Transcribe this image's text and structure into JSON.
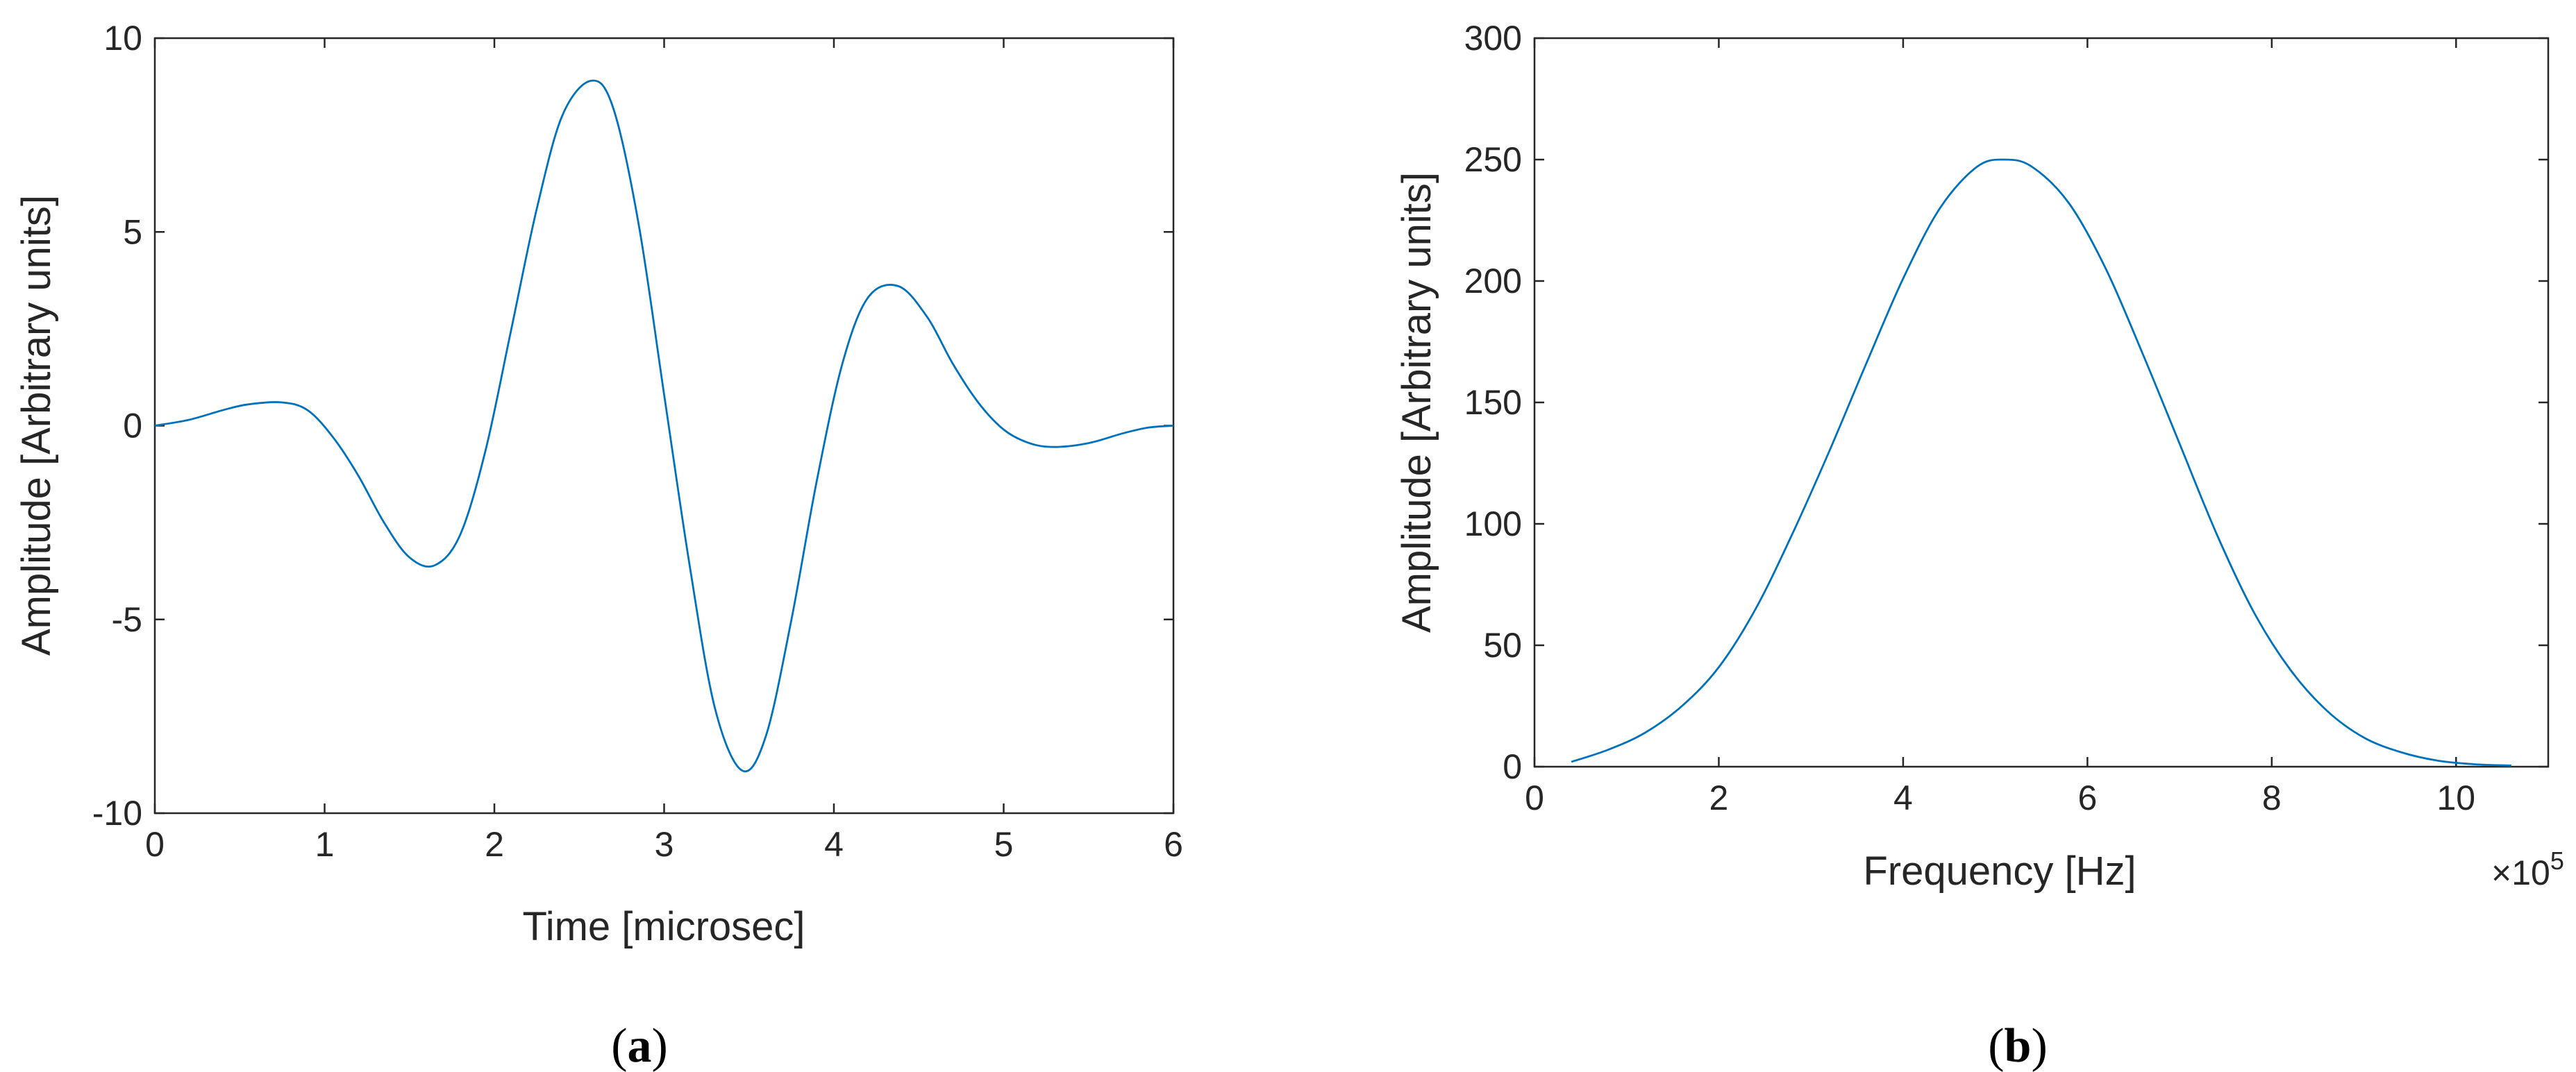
{
  "chart_data": [
    {
      "type": "line",
      "caption_letter": "a",
      "xlabel": "Time [microsec]",
      "ylabel": "Amplitude [Arbitrary units]",
      "xlim": [
        0,
        6
      ],
      "ylim": [
        -10,
        10
      ],
      "xticks": [
        0,
        1,
        2,
        3,
        4,
        5,
        6
      ],
      "yticks": [
        -10,
        -5,
        0,
        5,
        10
      ],
      "grid": false,
      "line_color": "#0072BD",
      "series": [
        {
          "x": [
            0,
            0.2,
            0.4,
            0.55,
            0.75,
            0.9,
            1.05,
            1.2,
            1.35,
            1.5,
            1.65,
            1.8,
            1.95,
            2.1,
            2.25,
            2.4,
            2.57,
            2.7,
            2.85,
            3.0,
            3.15,
            3.3,
            3.46,
            3.6,
            3.75,
            3.9,
            4.05,
            4.2,
            4.38,
            4.55,
            4.7,
            4.85,
            5.0,
            5.15,
            5.3,
            5.5,
            5.7,
            5.85,
            6.0
          ],
          "y": [
            0,
            0.15,
            0.4,
            0.55,
            0.6,
            0.4,
            -0.3,
            -1.3,
            -2.5,
            -3.4,
            -3.6,
            -2.8,
            -0.6,
            2.5,
            5.6,
            8.0,
            8.9,
            8.2,
            5.2,
            0.8,
            -3.6,
            -7.3,
            -8.9,
            -8.0,
            -5.0,
            -1.4,
            1.6,
            3.3,
            3.6,
            2.8,
            1.6,
            0.6,
            -0.1,
            -0.45,
            -0.55,
            -0.45,
            -0.2,
            -0.05,
            0
          ]
        }
      ]
    },
    {
      "type": "line",
      "caption_letter": "b",
      "xlabel": "Frequency [Hz]",
      "ylabel": "Amplitude [Arbitrary units]",
      "xlim": [
        0,
        11
      ],
      "ylim": [
        0,
        300
      ],
      "xticks": [
        0,
        2,
        4,
        6,
        8,
        10
      ],
      "yticks": [
        0,
        50,
        100,
        150,
        200,
        250,
        300
      ],
      "x_multiplier": "×10",
      "x_multiplier_exponent": "5",
      "grid": false,
      "line_color": "#0072BD",
      "series": [
        {
          "x": [
            0.4,
            0.8,
            1.2,
            1.6,
            2.0,
            2.4,
            2.8,
            3.2,
            3.6,
            4.0,
            4.4,
            4.8,
            5.1,
            5.4,
            5.8,
            6.2,
            6.6,
            7.0,
            7.4,
            7.8,
            8.2,
            8.6,
            9.0,
            9.4,
            9.8,
            10.2,
            10.6
          ],
          "y": [
            2,
            7,
            14,
            25,
            41,
            65,
            96,
            130,
            166,
            201,
            230,
            247,
            250,
            247,
            232,
            205,
            170,
            133,
            96,
            64,
            40,
            23,
            12,
            6,
            2.5,
            1,
            0.5
          ]
        }
      ]
    }
  ]
}
